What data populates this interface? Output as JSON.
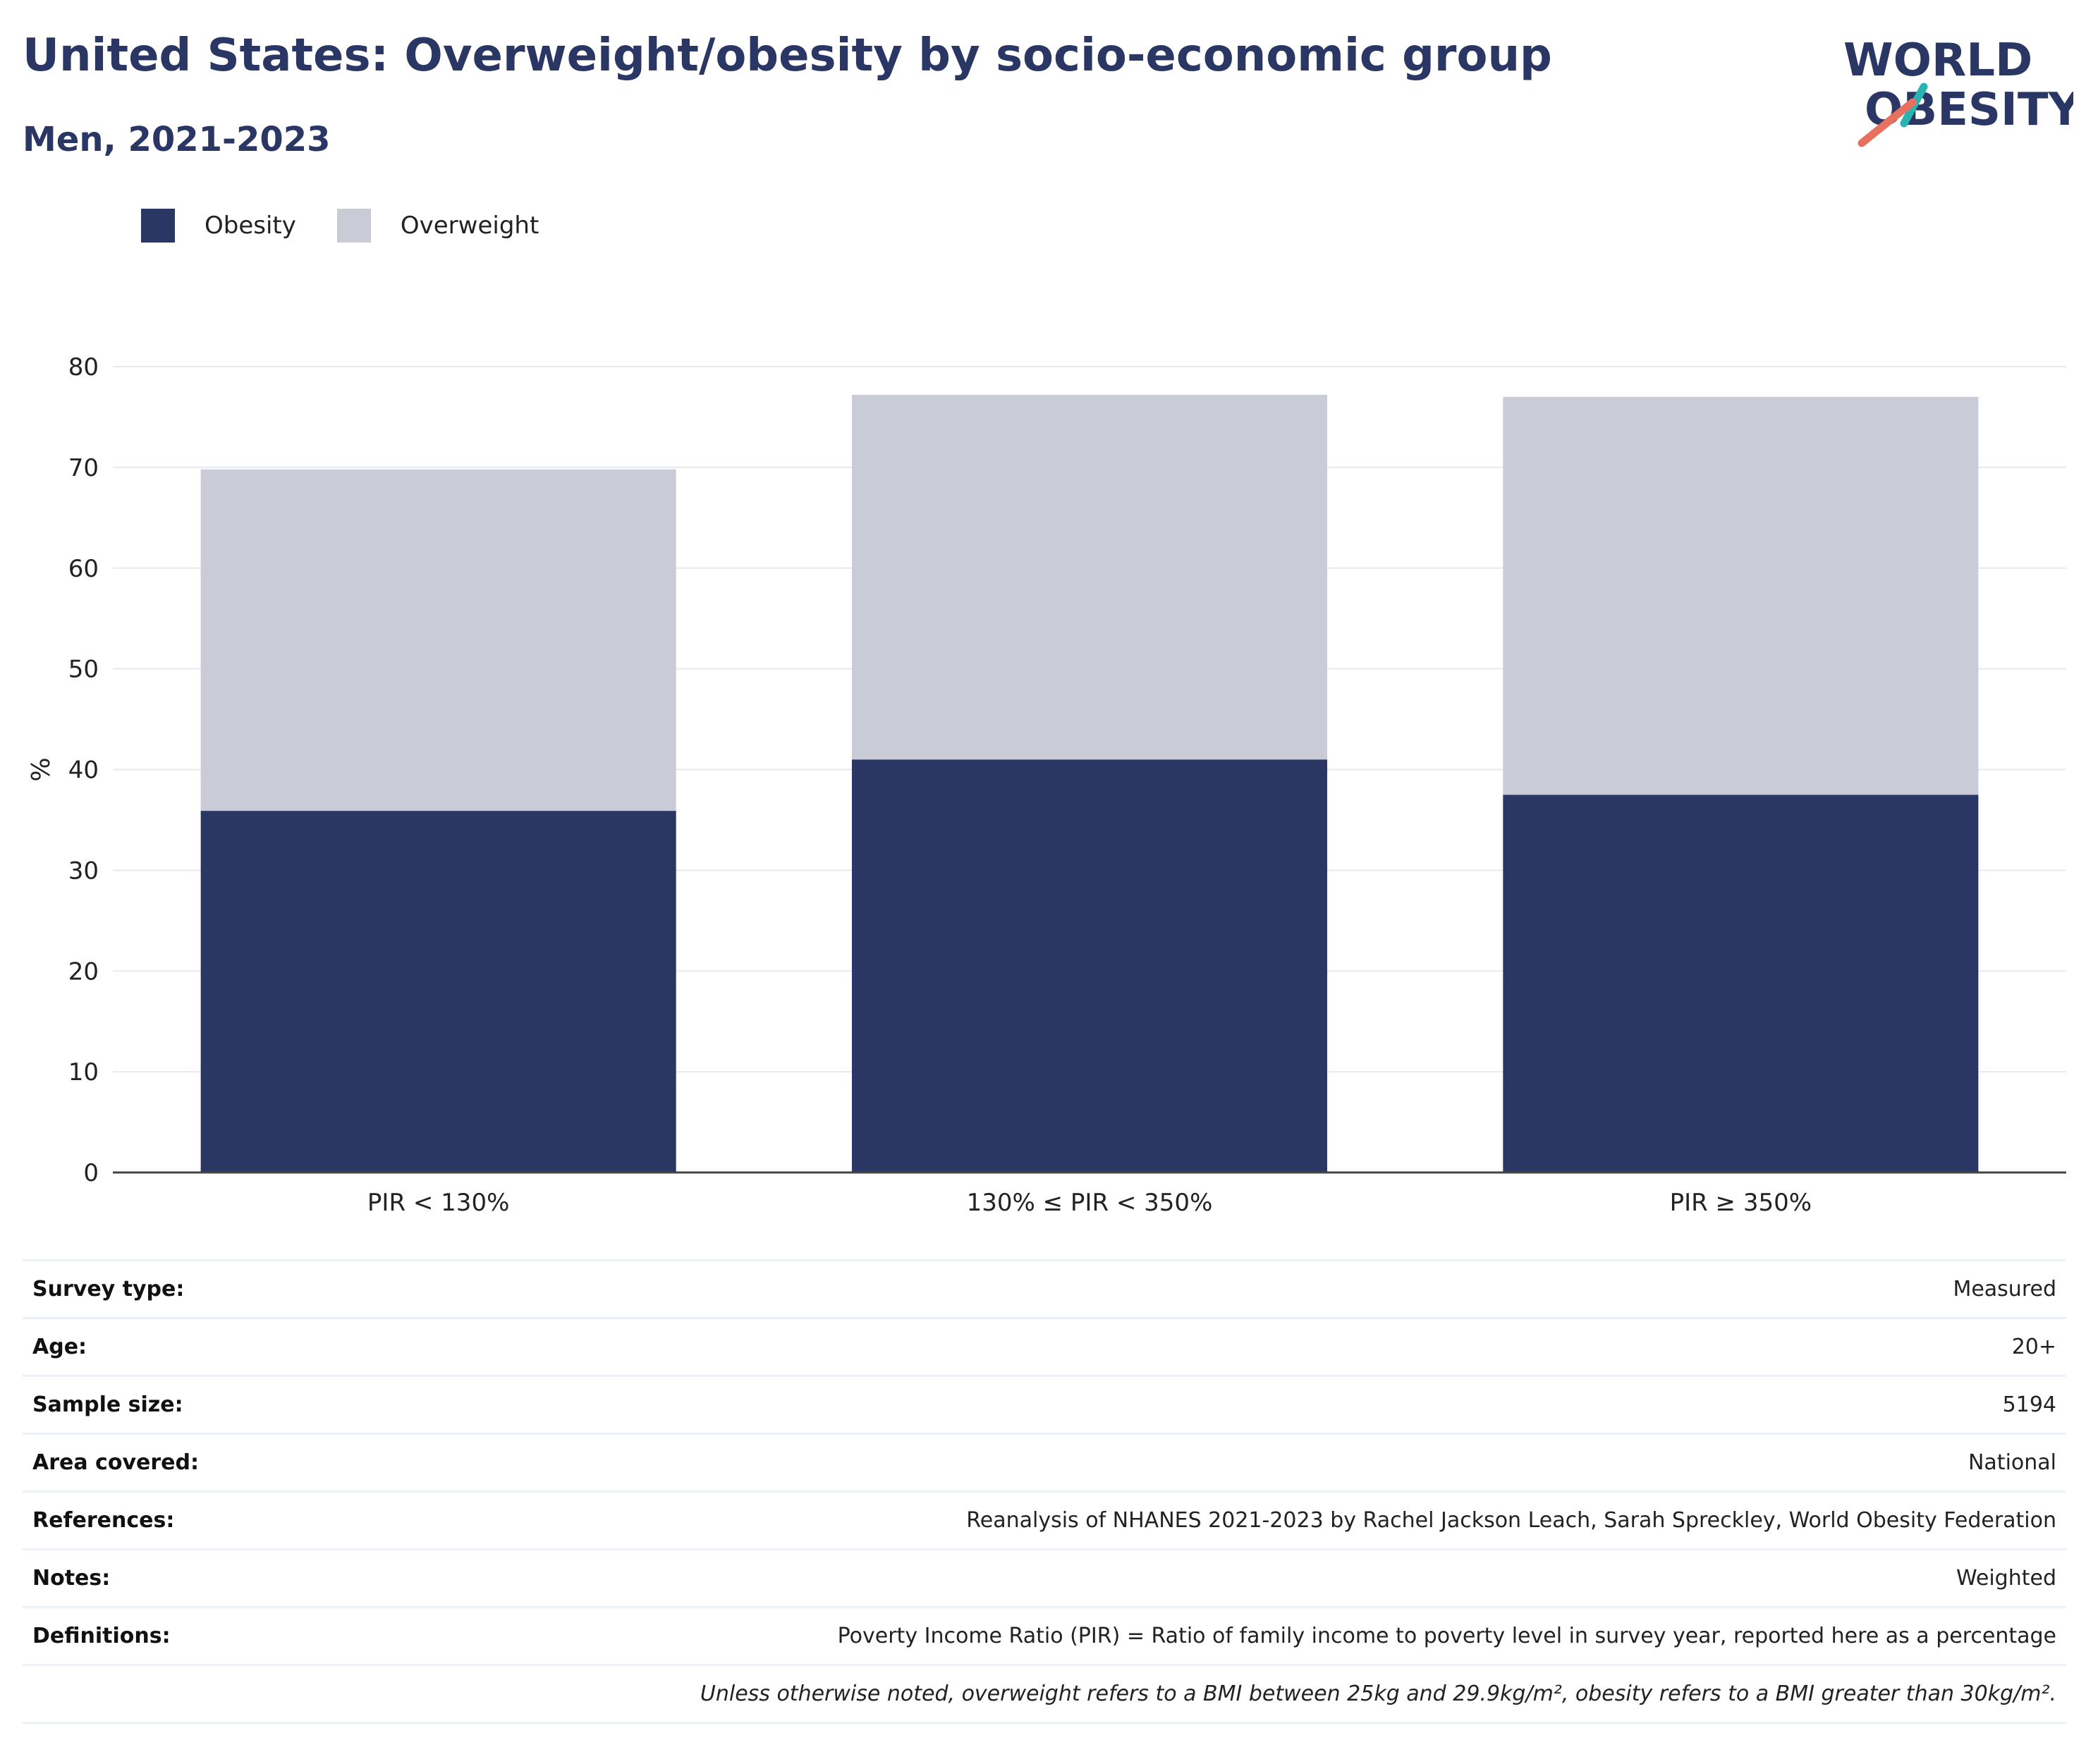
{
  "header": {
    "title": "United States: Overweight/obesity by socio-economic group",
    "subtitle": "Men, 2021-2023"
  },
  "logo": {
    "line1": "WORLD",
    "line2": "OBESITY",
    "text_color": "#2a3663",
    "slash_colors": [
      "#2bb3b1",
      "#e8705f"
    ]
  },
  "legend": {
    "items": [
      {
        "label": "Obesity",
        "color": "#2a3663"
      },
      {
        "label": "Overweight",
        "color": "#c9cbd6"
      }
    ]
  },
  "chart_data": {
    "type": "bar",
    "stacked": true,
    "categories": [
      "PIR < 130%",
      "130% ≤ PIR < 350%",
      "PIR ≥ 350%"
    ],
    "series": [
      {
        "name": "Obesity",
        "color": "#2a3663",
        "values": [
          35.9,
          41.0,
          37.5
        ]
      },
      {
        "name": "Overweight",
        "color": "#c9cbd6",
        "values": [
          33.9,
          36.2,
          39.5
        ]
      }
    ],
    "ylabel": "%",
    "ylim": [
      0,
      80
    ],
    "yticks": [
      0,
      10,
      20,
      30,
      40,
      50,
      60,
      70,
      80
    ],
    "grid": true,
    "legend_position": "top-left"
  },
  "info": {
    "rows": [
      {
        "label": "Survey type:",
        "value": "Measured"
      },
      {
        "label": "Age:",
        "value": "20+"
      },
      {
        "label": "Sample size:",
        "value": "5194"
      },
      {
        "label": "Area covered:",
        "value": "National"
      },
      {
        "label": "References:",
        "value": "Reanalysis of NHANES 2021-2023 by Rachel Jackson Leach, Sarah Spreckley, World Obesity Federation"
      },
      {
        "label": "Notes:",
        "value": "Weighted"
      },
      {
        "label": "Definitions:",
        "value": "Poverty Income Ratio (PIR) = Ratio of family income to poverty level in survey year, reported here as a percentage"
      }
    ],
    "footnote": "Unless otherwise noted, overweight refers to a BMI between 25kg and 29.9kg/m², obesity refers to a BMI greater than 30kg/m²."
  }
}
